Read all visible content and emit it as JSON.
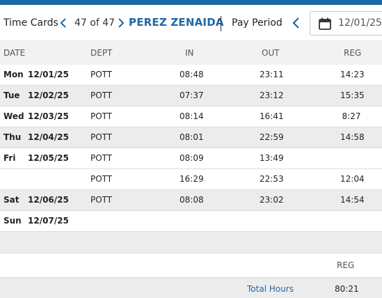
{
  "toolbar": {
    "title": "Time Cards",
    "counter": "47 of 47",
    "employee_name": "PEREZ ZENAIDA",
    "pay_period_label": "Pay Period",
    "pay_period_date": "12/01/25 -"
  },
  "table": {
    "headers": {
      "date": "DATE",
      "dept": "DEPT",
      "in": "IN",
      "out": "OUT",
      "reg": "REG"
    },
    "rows": [
      {
        "dow": "Mon",
        "date": "12/01/25",
        "dept": "POTT",
        "in": "08:48",
        "out": "23:11",
        "reg": "14:23"
      },
      {
        "dow": "Tue",
        "date": "12/02/25",
        "dept": "POTT",
        "in": "07:37",
        "out": "23:12",
        "reg": "15:35"
      },
      {
        "dow": "Wed",
        "date": "12/03/25",
        "dept": "POTT",
        "in": "08:14",
        "out": "16:41",
        "reg": "8:27"
      },
      {
        "dow": "Thu",
        "date": "12/04/25",
        "dept": "POTT",
        "in": "08:01",
        "out": "22:59",
        "reg": "14:58"
      },
      {
        "dow": "Fri",
        "date": "12/05/25",
        "dept": "POTT",
        "in": "08:09",
        "out": "13:49",
        "reg": ""
      },
      {
        "dow": "",
        "date": "",
        "dept": "POTT",
        "in": "16:29",
        "out": "22:53",
        "reg": "12:04"
      },
      {
        "dow": "Sat",
        "date": "12/06/25",
        "dept": "POTT",
        "in": "08:08",
        "out": "23:02",
        "reg": "14:54"
      },
      {
        "dow": "Sun",
        "date": "12/07/25",
        "dept": "",
        "in": "",
        "out": "",
        "reg": ""
      }
    ]
  },
  "summary": {
    "reg_header": "REG",
    "total_label": "Total Hours",
    "total_value": "80:21"
  },
  "colors": {
    "accent": "#1e67a6",
    "row_alt": "#ececec",
    "header_bg": "#f2f2f2"
  },
  "icons": [
    "chevron-left-icon",
    "chevron-right-icon",
    "calendar-icon"
  ]
}
